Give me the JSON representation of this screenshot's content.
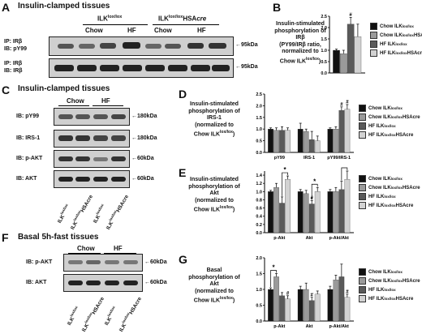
{
  "panels": {
    "A": {
      "letter": "A",
      "title": "Insulin-clamped tissues",
      "groups": [
        {
          "label": "ILK",
          "sup": "lox/lox",
          "suffix": ""
        },
        {
          "label": "ILK",
          "sup": "lox/lox",
          "suffix": "HSA",
          "cre": "cre"
        }
      ],
      "diets": [
        "Chow",
        "HF",
        "Chow",
        "HF"
      ],
      "blots": [
        {
          "ip": "IP: IRβ",
          "ib": "IB: pY99",
          "mw": "95kDa"
        },
        {
          "ip": "IP: IRβ",
          "ib": "IB: IRβ",
          "mw": "95kDa"
        }
      ]
    },
    "B": {
      "letter": "B",
      "ylabel": [
        "Insulin-stimulated",
        "phosphorylation of",
        "IRβ",
        "(PY99/IRβ ratio,",
        "normalized to",
        "Chow ILK"
      ],
      "ylabel_sup": "lox/lox",
      "ylabel_end": ")"
    },
    "C": {
      "letter": "C",
      "title": "Insulin-clamped tissues",
      "diets": [
        "Chow",
        "HF"
      ],
      "blots": [
        {
          "ib": "IB: pY99",
          "mw": "180kDa"
        },
        {
          "ib": "IB: IRS-1",
          "mw": "180kDa"
        },
        {
          "ib": "IB: p-AKT",
          "mw": "60kDa"
        },
        {
          "ib": "IB: AKT",
          "mw": "60kDa"
        }
      ],
      "lanes": [
        "ILK",
        "ILK",
        "ILK",
        "ILK"
      ],
      "lane_sups": [
        "lox/lox",
        "lox/lox",
        "lox/lox",
        "lox/lox"
      ],
      "lane_suffix": [
        "",
        "HSAcre",
        "",
        "HSAcre"
      ]
    },
    "D": {
      "letter": "D",
      "ylabel": [
        "Insulin-stimulated",
        "phosphorylation of",
        "IRS-1",
        "(normalized to",
        "Chow ILK"
      ],
      "ylabel_sup": "lox/lox",
      "ylabel_end": ")"
    },
    "E": {
      "letter": "E",
      "ylabel": [
        "Insulin-stimulated",
        "phosphorylation of",
        "Akt",
        "(normalized to",
        "Chow ILK"
      ],
      "ylabel_sup": "lox/lox",
      "ylabel_end": ")"
    },
    "F": {
      "letter": "F",
      "title": "Basal 5h-fast tissues",
      "diets": [
        "Chow",
        "HF"
      ],
      "blots": [
        {
          "ib": "IB: p-AKT",
          "mw": "60kDa"
        },
        {
          "ib": "IB: AKT",
          "mw": "60kDa"
        }
      ],
      "lanes": [
        "ILK",
        "ILK",
        "ILK",
        "ILK"
      ],
      "lane_sups": [
        "lox/lox",
        "lox/lox",
        "lox/lox",
        "lox/lox"
      ],
      "lane_suffix": [
        "",
        "HSAcre",
        "",
        "HSAcre"
      ]
    },
    "G": {
      "letter": "G",
      "ylabel": [
        "Basal",
        "phosphorylation of",
        "Akt",
        "(normalized to",
        "Chow ILK"
      ],
      "ylabel_sup": "lox/lox",
      "ylabel_end": ")"
    }
  },
  "legend": [
    {
      "name": "Chow ILK",
      "sup": "lox/lox",
      "color": "#111111"
    },
    {
      "name": "Chow ILK",
      "sup": "lox/lox",
      "suffix": "HSAcre",
      "color": "#9a9a9a"
    },
    {
      "name": "HF ILK",
      "sup": "lox/lox",
      "color": "#5a5a5a"
    },
    {
      "name": "HF ILK",
      "sup": "lox/lox",
      "suffix": "HSAcre",
      "color": "#d2d2d2"
    }
  ],
  "chart_data": [
    {
      "panel": "B",
      "type": "bar",
      "categories": [
        ""
      ],
      "ylim": [
        0,
        2.5
      ],
      "yticks": [
        0.0,
        0.5,
        1.0,
        1.5,
        2.0,
        2.5
      ],
      "series": [
        {
          "name": "Chow ILKlox/lox",
          "values": [
            1.0
          ],
          "err": [
            0.05
          ]
        },
        {
          "name": "Chow ILKlox/loxHSAcre",
          "values": [
            0.85
          ],
          "err": [
            0.15
          ]
        },
        {
          "name": "HF ILKlox/lox",
          "values": [
            2.15
          ],
          "err": [
            0.3
          ]
        },
        {
          "name": "HF ILKlox/loxHSAcre",
          "values": [
            1.6
          ],
          "err": [
            0.55
          ]
        }
      ],
      "annotations": [
        {
          "series": 2,
          "category": 0,
          "text": "#"
        }
      ]
    },
    {
      "panel": "D",
      "type": "bar",
      "categories": [
        "pY99",
        "IRS-1",
        "pY99/IRS-1"
      ],
      "ylim": [
        0,
        2.5
      ],
      "yticks": [
        0.0,
        0.5,
        1.0,
        1.5,
        2.0,
        2.5
      ],
      "series": [
        {
          "name": "Chow ILKlox/lox",
          "values": [
            1.0,
            1.0,
            1.0
          ],
          "err": [
            0.05,
            0.25,
            0.05
          ]
        },
        {
          "name": "Chow ILKlox/loxHSAcre",
          "values": [
            0.95,
            0.9,
            1.0
          ],
          "err": [
            0.1,
            0.1,
            0.1
          ]
        },
        {
          "name": "HF ILKlox/lox",
          "values": [
            0.95,
            0.55,
            1.8
          ],
          "err": [
            0.15,
            0.35,
            0.15
          ]
        },
        {
          "name": "HF ILKlox/loxHSAcre",
          "values": [
            0.95,
            0.5,
            1.85
          ],
          "err": [
            0.1,
            0.2,
            0.2
          ]
        }
      ],
      "annotations": [
        {
          "series": 2,
          "category": 2,
          "text": "#"
        },
        {
          "series": 3,
          "category": 2,
          "text": "#"
        }
      ]
    },
    {
      "panel": "E",
      "type": "bar",
      "categories": [
        "p-Akt",
        "Akt",
        "p-Akt/Akt"
      ],
      "ylim": [
        0,
        1.5
      ],
      "yticks": [
        0.0,
        0.2,
        0.4,
        0.6,
        0.8,
        1.0,
        1.2,
        1.4
      ],
      "series": [
        {
          "name": "Chow ILKlox/lox",
          "values": [
            1.0,
            1.0,
            1.0
          ],
          "err": [
            0.03,
            0.05,
            0.05
          ]
        },
        {
          "name": "Chow ILKlox/loxHSAcre",
          "values": [
            1.1,
            0.95,
            1.0
          ],
          "err": [
            0.1,
            0.08,
            0.1
          ]
        },
        {
          "name": "HF ILKlox/lox",
          "values": [
            0.72,
            0.7,
            1.05
          ],
          "err": [
            0.15,
            0.08,
            0.2
          ]
        },
        {
          "name": "HF ILKlox/loxHSAcre",
          "values": [
            1.3,
            1.0,
            1.3
          ],
          "err": [
            0.08,
            0.1,
            0.2
          ]
        }
      ],
      "annotations": [
        {
          "series": 2,
          "category": 1,
          "text": "#"
        },
        {
          "bracket": [
            [
              0,
              2
            ],
            [
              0,
              3
            ]
          ],
          "text": "*"
        },
        {
          "bracket": [
            [
              1,
              2
            ],
            [
              1,
              3
            ]
          ],
          "text": "*"
        },
        {
          "bracket": [
            [
              2,
              2
            ],
            [
              2,
              3
            ]
          ],
          "text": "*"
        }
      ]
    },
    {
      "panel": "G",
      "type": "bar",
      "categories": [
        "p-Akt",
        "Akt",
        "p-Akt/Akt"
      ],
      "ylim": [
        0,
        2.0
      ],
      "yticks": [
        0.0,
        0.5,
        1.0,
        1.5,
        2.0
      ],
      "series": [
        {
          "name": "Chow ILKlox/lox",
          "values": [
            1.0,
            1.0,
            1.0
          ],
          "err": [
            0.05,
            0.1,
            0.1
          ]
        },
        {
          "name": "Chow ILKlox/loxHSAcre",
          "values": [
            1.4,
            1.0,
            1.3
          ],
          "err": [
            0.1,
            0.2,
            0.15
          ]
        },
        {
          "name": "HF ILKlox/lox",
          "values": [
            0.8,
            0.65,
            1.4
          ],
          "err": [
            0.1,
            0.1,
            0.4
          ]
        },
        {
          "name": "HF ILKlox/loxHSAcre",
          "values": [
            0.7,
            0.85,
            0.75
          ],
          "err": [
            0.1,
            0.1,
            0.1
          ]
        }
      ],
      "annotations": [
        {
          "series": 3,
          "category": 0,
          "text": "#"
        },
        {
          "series": 2,
          "category": 1,
          "text": "#"
        },
        {
          "series": 3,
          "category": 2,
          "text": "#"
        },
        {
          "bracket": [
            [
              0,
              0
            ],
            [
              0,
              1
            ]
          ],
          "text": "*"
        }
      ]
    }
  ]
}
